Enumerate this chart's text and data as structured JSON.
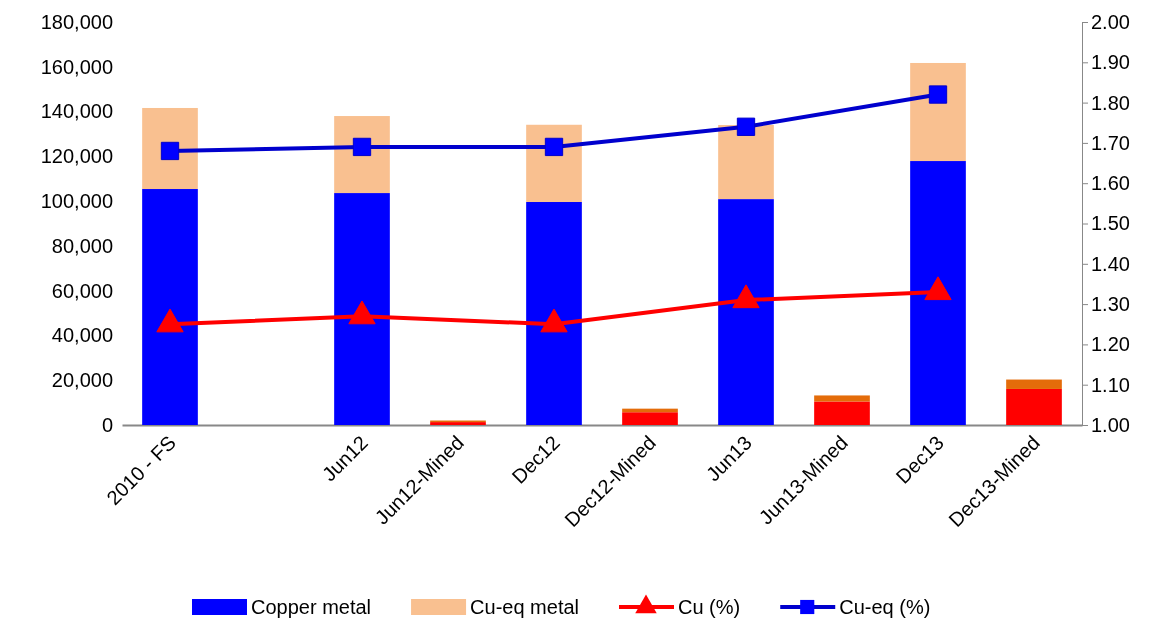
{
  "chart_data": {
    "type": "bar",
    "stacked": true,
    "categories": [
      "2010 - FS",
      null,
      "Jun12",
      "Jun12-Mined",
      "Dec12",
      "Dec12-Mined",
      "Jun13",
      "Jun13-Mined",
      "Dec13",
      "Dec13-Mined"
    ],
    "series": [
      {
        "name": "Copper metal",
        "color": "#0000ff",
        "colors": [
          "#0000ff",
          null,
          "#0000ff",
          "#ff0000",
          "#0000ff",
          "#ff0000",
          "#0000ff",
          "#ff0000",
          "#0000ff",
          "#ff0000"
        ],
        "values": [
          105400,
          null,
          103600,
          1300,
          99600,
          5700,
          100900,
          10500,
          117900,
          16100
        ]
      },
      {
        "name": "Cu-eq metal",
        "color": "#f9c090",
        "colors": [
          "#f9c090",
          null,
          "#f9c090",
          "#e46c0a",
          "#f9c090",
          "#e46c0a",
          "#f9c090",
          "#e46c0a",
          "#f9c090",
          "#e46c0a"
        ],
        "values": [
          36200,
          null,
          34400,
          700,
          34500,
          1600,
          33100,
          2700,
          43800,
          4200
        ]
      },
      {
        "name": "Cu (%)",
        "type": "line",
        "axis": "y2",
        "marker": "triangle",
        "color": "#ff0000",
        "values": [
          1.25,
          null,
          1.27,
          null,
          1.25,
          null,
          1.31,
          null,
          1.33,
          null
        ]
      },
      {
        "name": "Cu-eq (%)",
        "type": "line",
        "axis": "y2",
        "marker": "square",
        "color": "#0000cd",
        "values": [
          1.68,
          null,
          1.69,
          null,
          1.69,
          null,
          1.74,
          null,
          1.82,
          null
        ]
      }
    ],
    "ylim": [
      0,
      180000
    ],
    "yticks": [
      {
        "value": 0,
        "label": "0"
      },
      {
        "value": 20000,
        "label": "20,000"
      },
      {
        "value": 40000,
        "label": "40,000"
      },
      {
        "value": 60000,
        "label": "60,000"
      },
      {
        "value": 80000,
        "label": "80,000"
      },
      {
        "value": 100000,
        "label": "100,000"
      },
      {
        "value": 120000,
        "label": "120,000"
      },
      {
        "value": 140000,
        "label": "140,000"
      },
      {
        "value": 160000,
        "label": "160,000"
      },
      {
        "value": 180000,
        "label": "180,000"
      }
    ],
    "y2lim": [
      1,
      2
    ],
    "y2ticks": [
      {
        "value": 1,
        "label": "1.00"
      },
      {
        "value": 1.1,
        "label": "1.10"
      },
      {
        "value": 1.2,
        "label": "1.20"
      },
      {
        "value": 1.3,
        "label": "1.30"
      },
      {
        "value": 1.4,
        "label": "1.40"
      },
      {
        "value": 1.5,
        "label": "1.50"
      },
      {
        "value": 1.6,
        "label": "1.60"
      },
      {
        "value": 1.7,
        "label": "1.70"
      },
      {
        "value": 1.8,
        "label": "1.80"
      },
      {
        "value": 1.9,
        "label": "1.90"
      },
      {
        "value": 2,
        "label": "2.00"
      }
    ],
    "grid": false,
    "legend": "bottom"
  }
}
